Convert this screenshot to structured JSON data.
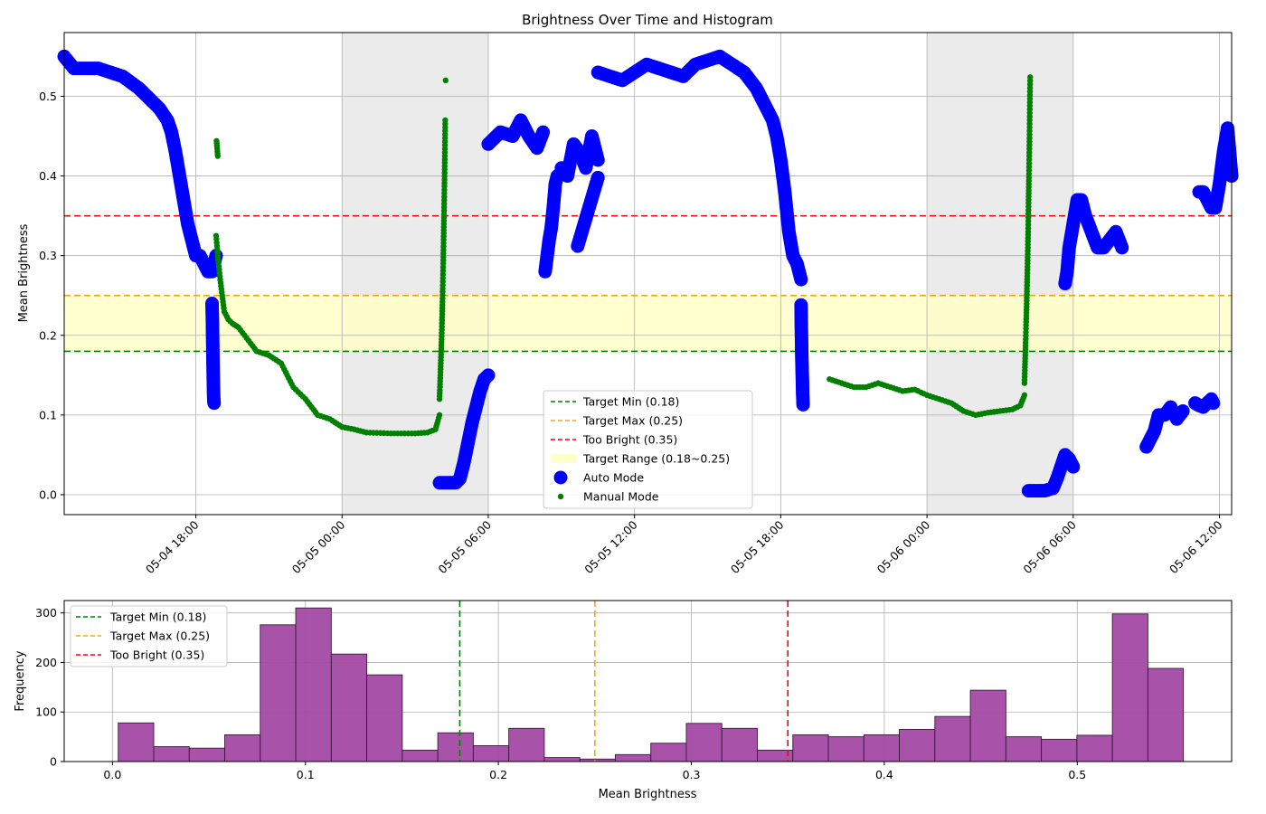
{
  "chart_data": [
    {
      "type": "scatter",
      "title": "Brightness Over Time and Histogram",
      "xlabel": "",
      "ylabel": "Mean Brightness",
      "xlim": [
        "2026-05-04 12:36",
        "2026-05-06 12:30"
      ],
      "ylim": [
        -0.025,
        0.58
      ],
      "x_ticks": [
        "05-04 18:00",
        "05-05 00:00",
        "05-05 06:00",
        "05-05 12:00",
        "05-05 18:00",
        "05-06 00:00",
        "05-06 06:00",
        "05-06 12:00"
      ],
      "y_ticks": [
        "0.0",
        "0.1",
        "0.2",
        "0.3",
        "0.4",
        "0.5"
      ],
      "grid": true,
      "shaded_night_periods": [
        [
          "2026-05-05 00:00",
          "2026-05-05 06:00"
        ],
        [
          "2026-05-06 00:00",
          "2026-05-06 06:00"
        ]
      ],
      "target_range": [
        0.18,
        0.25
      ],
      "reference_lines": [
        {
          "label": "Target Min (0.18)",
          "value": 0.18,
          "color": "#008000",
          "style": "dashed"
        },
        {
          "label": "Target Max (0.25)",
          "value": 0.25,
          "color": "#ffa500",
          "style": "dashed"
        },
        {
          "label": "Too Bright (0.35)",
          "value": 0.35,
          "color": "#ff0000",
          "style": "dashed"
        }
      ],
      "legend": {
        "placement": "lower-center",
        "entries": [
          {
            "label": "Target Min (0.18)",
            "kind": "line",
            "color": "#008000"
          },
          {
            "label": "Target Max (0.25)",
            "kind": "line",
            "color": "#ffa500"
          },
          {
            "label": "Too Bright (0.35)",
            "kind": "line",
            "color": "#ff0000"
          },
          {
            "label": "Target Range (0.18~0.25)",
            "kind": "patch",
            "color": "#ffffc8"
          },
          {
            "label": "Auto Mode",
            "kind": "marker-large",
            "color": "#0000ff"
          },
          {
            "label": "Manual Mode",
            "kind": "marker-small",
            "color": "#008000"
          }
        ]
      },
      "series": [
        {
          "name": "Auto Mode",
          "color": "#0000ff",
          "segments": [
            {
              "x": [
                "05-04 12:36",
                "05-04 13:00",
                "05-04 14:00",
                "05-04 15:00",
                "05-04 15:40",
                "05-04 16:00",
                "05-04 16:30",
                "05-04 16:50",
                "05-04 17:00",
                "05-04 17:10",
                "05-04 17:20",
                "05-04 17:30",
                "05-04 17:40",
                "05-04 17:50",
                "05-04 18:00",
                "05-04 18:10",
                "05-04 18:20",
                "05-04 18:30",
                "05-04 18:40",
                "05-04 18:50"
              ],
              "y": [
                0.55,
                0.535,
                0.535,
                0.525,
                0.51,
                0.5,
                0.485,
                0.47,
                0.455,
                0.43,
                0.4,
                0.37,
                0.34,
                0.32,
                0.3,
                0.3,
                0.29,
                0.28,
                0.28,
                0.3
              ]
            },
            {
              "x": [
                "05-04 18:40",
                "05-04 18:41",
                "05-04 18:42",
                "05-04 18:43",
                "05-04 18:44",
                "05-04 18:45"
              ],
              "y": [
                0.24,
                0.215,
                0.178,
                0.146,
                0.122,
                0.115
              ]
            },
            {
              "x": [
                "05-05 04:00",
                "05-05 04:20",
                "05-05 04:40",
                "05-05 04:50",
                "05-05 05:00",
                "05-05 05:10",
                "05-05 05:20",
                "05-05 05:30",
                "05-05 05:40",
                "05-05 05:50",
                "05-05 06:00"
              ],
              "y": [
                0.015,
                0.015,
                0.015,
                0.02,
                0.04,
                0.065,
                0.09,
                0.11,
                0.13,
                0.145,
                0.15
              ]
            },
            {
              "x": [
                "05-05 06:00",
                "05-05 06:30",
                "05-05 07:00",
                "05-05 07:20",
                "05-05 07:40",
                "05-05 08:00",
                "05-05 08:15"
              ],
              "y": [
                0.44,
                0.455,
                0.45,
                0.47,
                0.45,
                0.435,
                0.455
              ]
            },
            {
              "x": [
                "05-05 08:20",
                "05-05 08:25",
                "05-05 08:30",
                "05-05 08:35",
                "05-05 08:40",
                "05-05 08:45",
                "05-05 08:50"
              ],
              "y": [
                0.28,
                0.3,
                0.32,
                0.335,
                0.36,
                0.39,
                0.4
              ]
            },
            {
              "x": [
                "05-05 09:00",
                "05-05 09:15",
                "05-05 09:30",
                "05-05 09:45",
                "05-05 10:00",
                "05-05 10:15",
                "05-05 10:30"
              ],
              "y": [
                0.41,
                0.4,
                0.44,
                0.43,
                0.41,
                0.45,
                0.42
              ]
            },
            {
              "x": [
                "05-05 09:40",
                "05-05 10:30"
              ],
              "y": [
                0.312,
                0.398
              ]
            },
            {
              "x": [
                "05-05 10:30",
                "05-05 11:00",
                "05-05 11:30",
                "05-05 12:00",
                "05-05 12:30",
                "05-05 13:00",
                "05-05 13:30",
                "05-05 14:00",
                "05-05 14:30",
                "05-05 15:00",
                "05-05 15:30",
                "05-05 16:00",
                "05-05 16:30",
                "05-05 17:00",
                "05-05 17:20",
                "05-05 17:40",
                "05-05 17:50",
                "05-05 18:00",
                "05-05 18:10",
                "05-05 18:20",
                "05-05 18:30",
                "05-05 18:40",
                "05-05 18:50"
              ],
              "y": [
                0.53,
                0.525,
                0.52,
                0.53,
                0.54,
                0.535,
                0.53,
                0.525,
                0.54,
                0.545,
                0.55,
                0.54,
                0.53,
                0.51,
                0.49,
                0.47,
                0.45,
                0.42,
                0.38,
                0.33,
                0.3,
                0.29,
                0.27
              ]
            },
            {
              "x": [
                "05-05 18:50",
                "05-05 18:51",
                "05-05 18:52",
                "05-05 18:53",
                "05-05 18:54",
                "05-05 18:55"
              ],
              "y": [
                0.238,
                0.2,
                0.17,
                0.15,
                0.127,
                0.113
              ]
            },
            {
              "x": [
                "05-06 04:10",
                "05-06 04:30",
                "05-06 04:50",
                "05-06 05:10",
                "05-06 05:20",
                "05-06 05:30",
                "05-06 05:40",
                "05-06 05:50",
                "05-06 06:00"
              ],
              "y": [
                0.005,
                0.005,
                0.005,
                0.008,
                0.02,
                0.035,
                0.05,
                0.045,
                0.035
              ]
            },
            {
              "x": [
                "05-06 05:40",
                "05-06 05:45",
                "05-06 05:50",
                "05-06 06:00",
                "05-06 06:10",
                "05-06 06:20",
                "05-06 06:30",
                "05-06 06:45",
                "05-06 07:00",
                "05-06 07:15",
                "05-06 07:30",
                "05-06 07:45",
                "05-06 08:00"
              ],
              "y": [
                0.265,
                0.28,
                0.31,
                0.34,
                0.37,
                0.37,
                0.35,
                0.33,
                0.31,
                0.31,
                0.32,
                0.33,
                0.31
              ]
            },
            {
              "x": [
                "05-06 09:00",
                "05-06 09:10",
                "05-06 09:20",
                "05-06 09:30",
                "05-06 09:45",
                "05-06 10:00",
                "05-06 10:15",
                "05-06 10:30"
              ],
              "y": [
                0.06,
                0.07,
                0.08,
                0.1,
                0.1,
                0.11,
                0.095,
                0.105
              ]
            },
            {
              "x": [
                "05-06 11:00",
                "05-06 11:10",
                "05-06 11:20",
                "05-06 11:30",
                "05-06 11:40",
                "05-06 11:45"
              ],
              "y": [
                0.115,
                0.112,
                0.11,
                0.115,
                0.12,
                0.115
              ]
            },
            {
              "x": [
                "05-06 11:10",
                "05-06 11:20",
                "05-06 11:30",
                "05-06 11:40",
                "05-06 11:50",
                "05-06 12:00",
                "05-06 12:10",
                "05-06 12:20",
                "05-06 12:30"
              ],
              "y": [
                0.38,
                0.38,
                0.37,
                0.36,
                0.36,
                0.39,
                0.43,
                0.46,
                0.4
              ]
            }
          ]
        },
        {
          "name": "Manual Mode",
          "color": "#008000",
          "segments": [
            {
              "x": [
                "05-04 18:50",
                "05-04 18:55",
                "05-04 19:00",
                "05-04 19:05",
                "05-04 19:10",
                "05-04 19:20",
                "05-04 19:30",
                "05-04 19:45",
                "05-04 20:00",
                "05-04 20:30",
                "05-04 21:00",
                "05-04 21:30",
                "05-04 22:00",
                "05-04 22:30",
                "05-04 23:00",
                "05-04 23:30",
                "05-05 00:00",
                "05-05 00:30",
                "05-05 01:00",
                "05-05 02:00",
                "05-05 03:00",
                "05-05 03:30",
                "05-05 03:50",
                "05-05 04:00"
              ],
              "y": [
                0.325,
                0.295,
                0.27,
                0.25,
                0.23,
                0.22,
                0.215,
                0.21,
                0.2,
                0.18,
                0.175,
                0.165,
                0.135,
                0.12,
                0.1,
                0.095,
                0.085,
                0.082,
                0.078,
                0.077,
                0.077,
                0.078,
                0.082,
                0.1
              ]
            },
            {
              "x": [
                "05-04 18:51",
                "05-04 18:52",
                "05-04 18:53",
                "05-04 18:54"
              ],
              "y": [
                0.444,
                0.438,
                0.431,
                0.425
              ]
            },
            {
              "x": [
                "05-05 04:00",
                "05-05 04:01",
                "05-05 04:02",
                "05-05 04:03",
                "05-05 04:04",
                "05-05 04:05",
                "05-05 04:06",
                "05-05 04:07",
                "05-05 04:08",
                "05-05 04:09",
                "05-05 04:10",
                "05-05 04:11",
                "05-05 04:12",
                "05-05 04:13",
                "05-05 04:14"
              ],
              "y": [
                0.12,
                0.135,
                0.15,
                0.165,
                0.18,
                0.195,
                0.215,
                0.238,
                0.263,
                0.29,
                0.32,
                0.352,
                0.387,
                0.425,
                0.47
              ]
            },
            {
              "x": [
                "05-05 04:15"
              ],
              "y": [
                0.52
              ]
            },
            {
              "x": [
                "05-05 20:00",
                "05-05 20:30",
                "05-05 21:00",
                "05-05 21:30",
                "05-05 22:00",
                "05-05 22:30",
                "05-05 23:00",
                "05-05 23:30",
                "05-06 00:00",
                "05-06 00:30",
                "05-06 01:00",
                "05-06 01:30",
                "05-06 02:00",
                "05-06 02:30",
                "05-06 03:00",
                "05-06 03:30",
                "05-06 03:50",
                "05-06 04:00"
              ],
              "y": [
                0.145,
                0.14,
                0.135,
                0.135,
                0.14,
                0.135,
                0.13,
                0.132,
                0.125,
                0.12,
                0.115,
                0.105,
                0.1,
                0.103,
                0.105,
                0.107,
                0.112,
                0.125
              ]
            },
            {
              "x": [
                "05-06 04:00",
                "05-06 04:01",
                "05-06 04:02",
                "05-06 04:03",
                "05-06 04:04",
                "05-06 04:05",
                "05-06 04:06",
                "05-06 04:07",
                "05-06 04:08",
                "05-06 04:09",
                "05-06 04:10",
                "05-06 04:11",
                "05-06 04:12",
                "05-06 04:13",
                "05-06 04:14"
              ],
              "y": [
                0.14,
                0.16,
                0.175,
                0.195,
                0.213,
                0.232,
                0.255,
                0.278,
                0.302,
                0.33,
                0.366,
                0.398,
                0.434,
                0.479,
                0.524
              ]
            }
          ]
        }
      ]
    },
    {
      "type": "bar",
      "title": "",
      "xlabel": "Mean Brightness",
      "ylabel": "Frequency",
      "xlim": [
        -0.025,
        0.58
      ],
      "ylim": [
        0,
        325
      ],
      "x_ticks": [
        "0.0",
        "0.1",
        "0.2",
        "0.3",
        "0.4",
        "0.5"
      ],
      "y_ticks": [
        "0",
        "100",
        "200",
        "300"
      ],
      "grid": true,
      "bar_color": "#a349a4",
      "bin_start": 0.003,
      "bin_width": 0.0184,
      "values": [
        78,
        30,
        27,
        54,
        276,
        310,
        217,
        175,
        23,
        58,
        32,
        67,
        8,
        5,
        14,
        37,
        77,
        67,
        23,
        54,
        50,
        54,
        65,
        91,
        144,
        50,
        45,
        53,
        298,
        188
      ],
      "reference_lines": [
        {
          "label": "Target Min (0.18)",
          "value": 0.18,
          "color": "#008000",
          "style": "dashed"
        },
        {
          "label": "Target Max (0.25)",
          "value": 0.25,
          "color": "#ffa500",
          "style": "dashed"
        },
        {
          "label": "Too Bright (0.35)",
          "value": 0.35,
          "color": "#ff0000",
          "style": "dashed"
        }
      ],
      "legend": {
        "placement": "upper-left",
        "entries": [
          {
            "label": "Target Min (0.18)",
            "color": "#008000"
          },
          {
            "label": "Target Max (0.25)",
            "color": "#ffa500"
          },
          {
            "label": "Too Bright (0.35)",
            "color": "#ff0000"
          }
        ]
      }
    }
  ]
}
